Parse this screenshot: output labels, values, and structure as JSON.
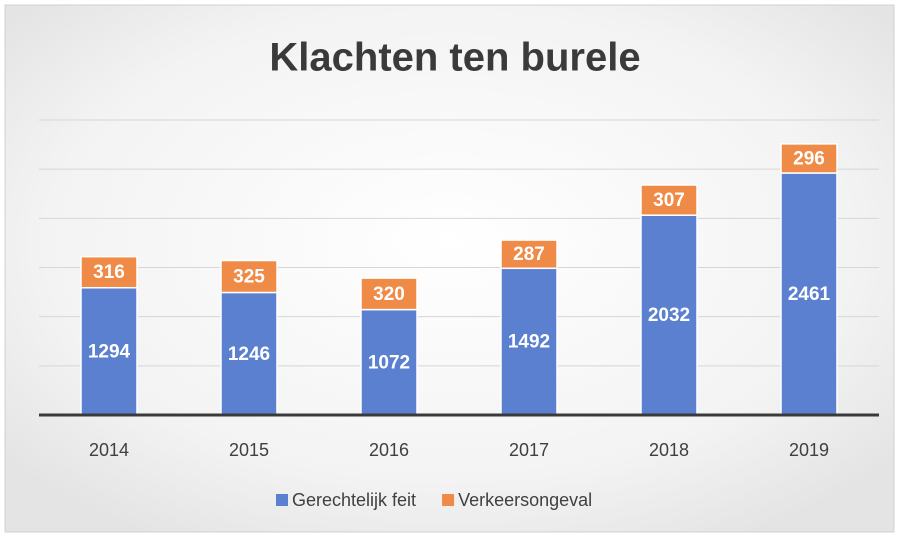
{
  "chart_data": {
    "type": "stacked_bar",
    "title": "Klachten ten burele",
    "categories": [
      "2014",
      "2015",
      "2016",
      "2017",
      "2018",
      "2019"
    ],
    "series": [
      {
        "name": "Gerechtelijk feit",
        "color": "#5a80cf",
        "values": [
          1294,
          1246,
          1072,
          1492,
          2032,
          2461
        ]
      },
      {
        "name": "Verkeersongeval",
        "color": "#ef8a47",
        "values": [
          316,
          325,
          320,
          287,
          307,
          296
        ]
      }
    ],
    "ylim": [
      0,
      3000
    ],
    "yticks": [
      0,
      500,
      1000,
      1500,
      2000,
      2500,
      3000
    ],
    "grid": true,
    "legend": "bottom"
  }
}
